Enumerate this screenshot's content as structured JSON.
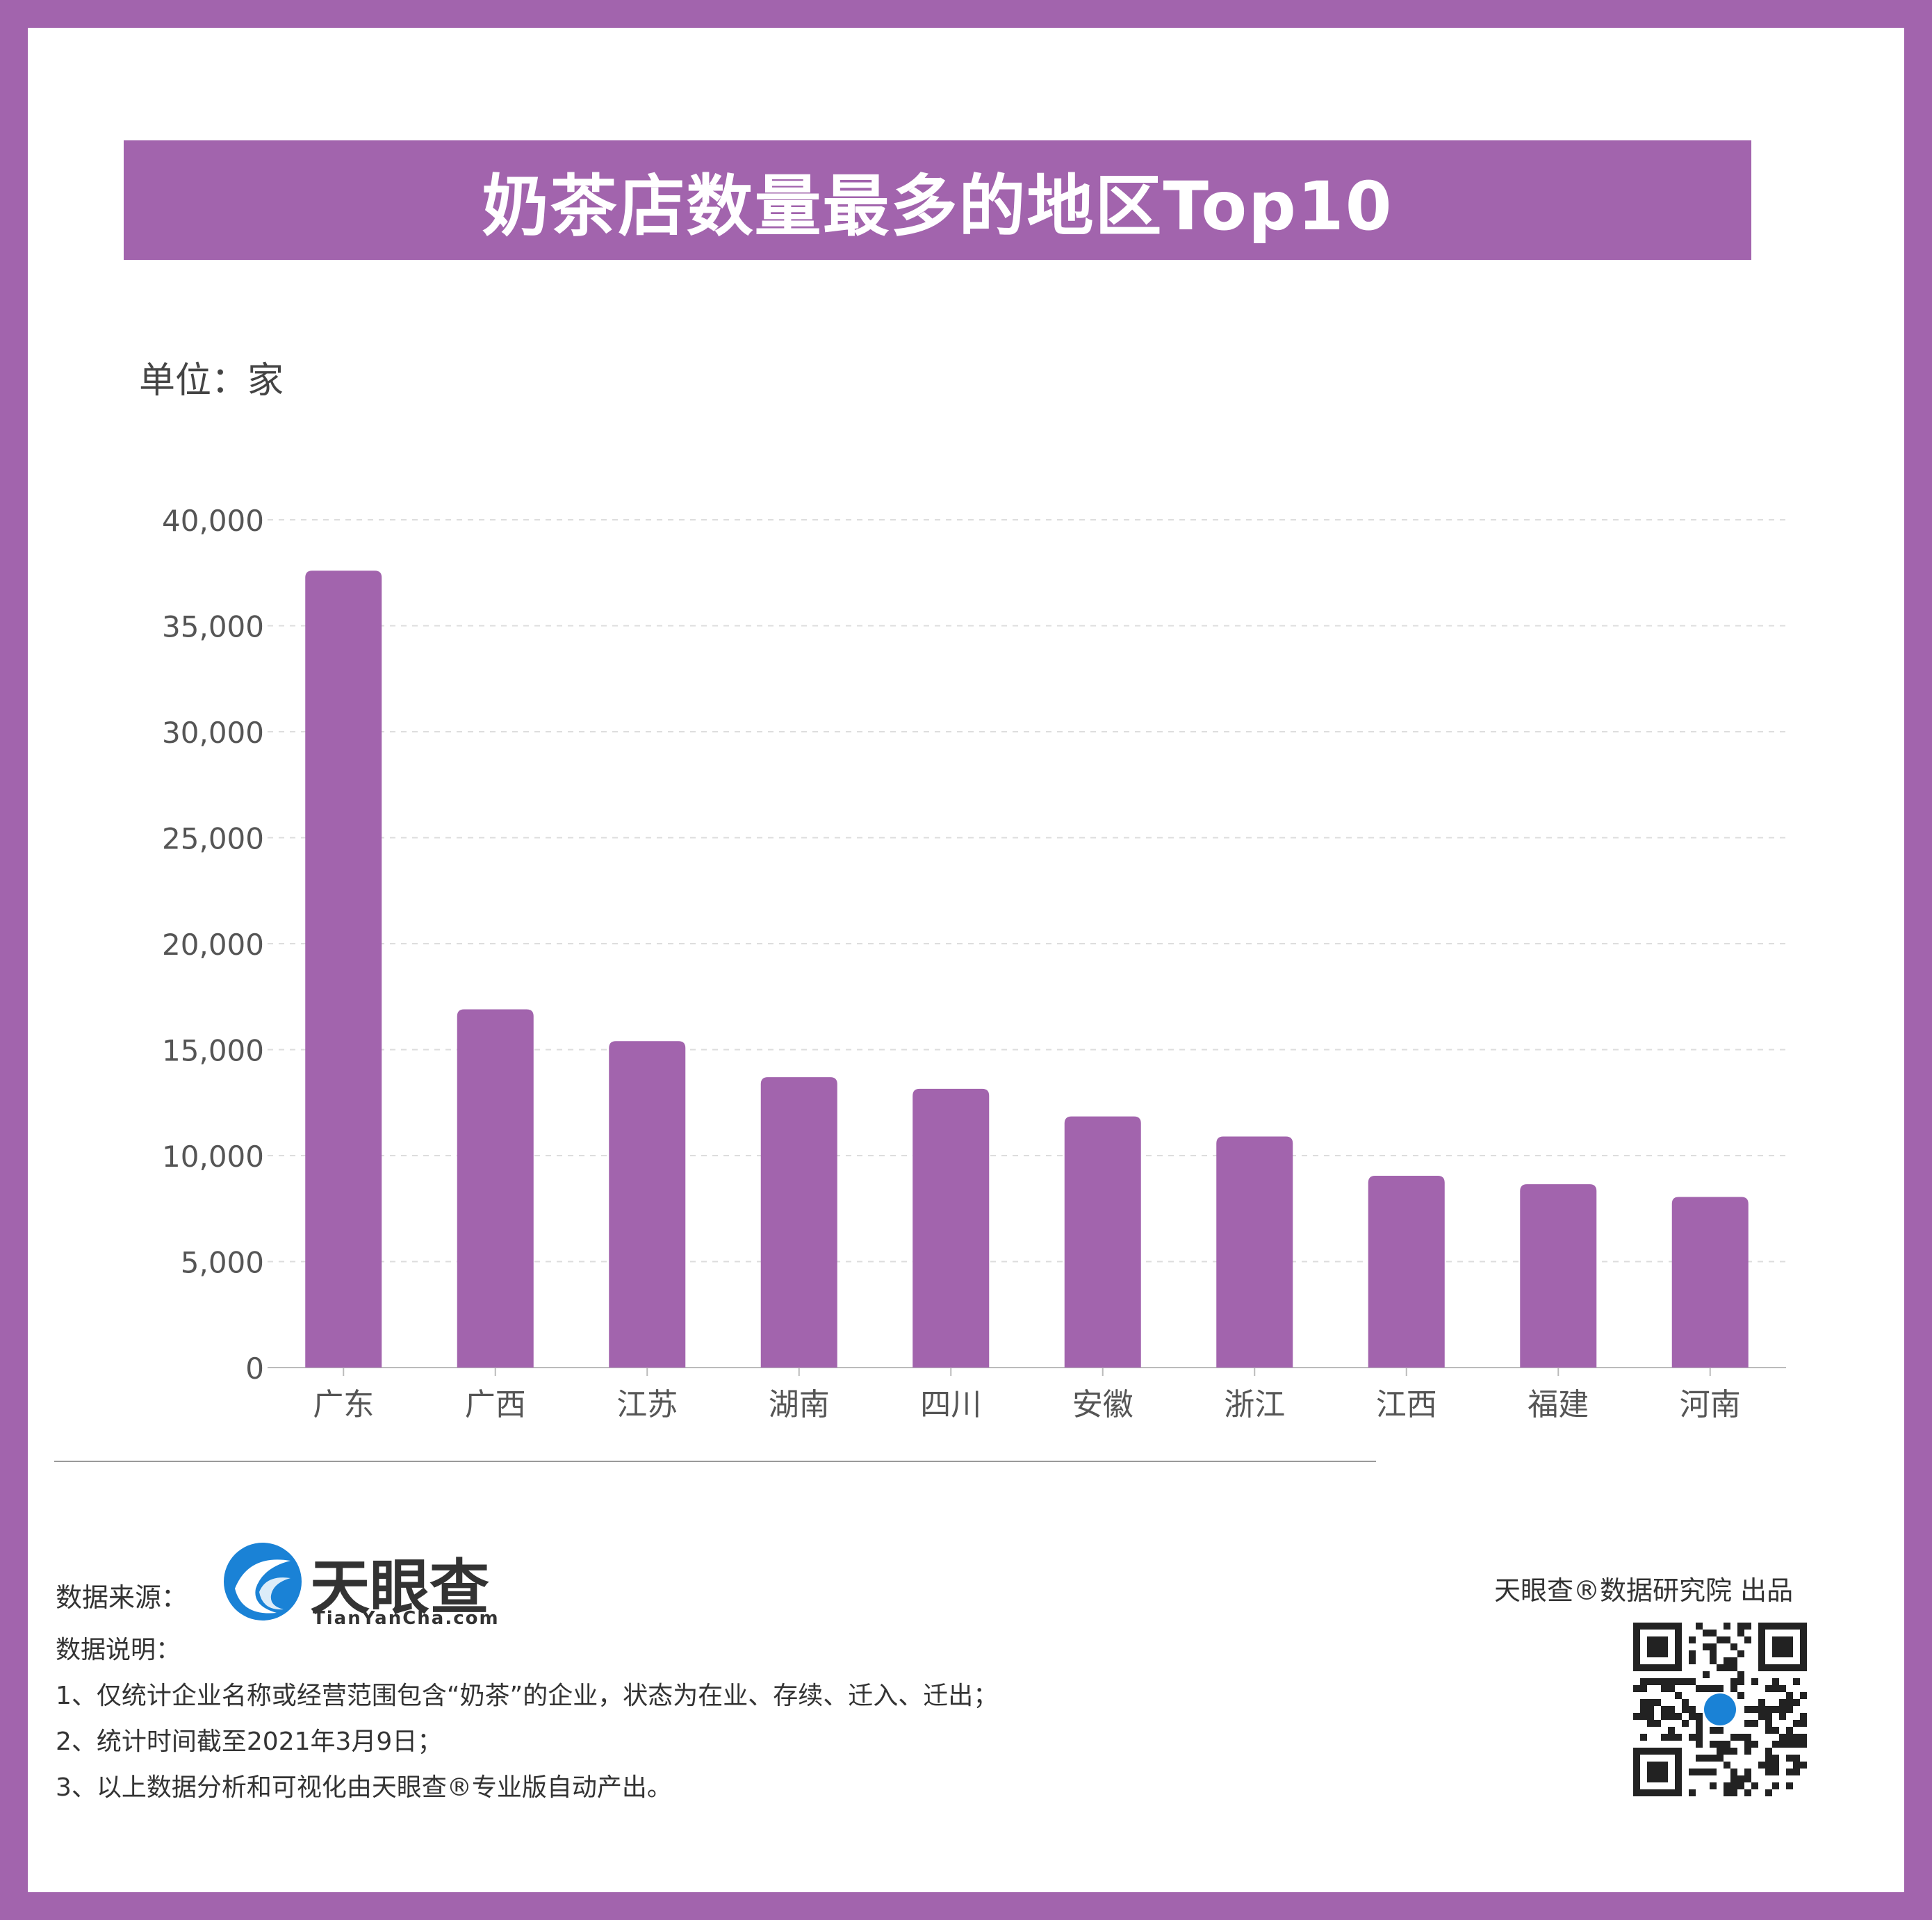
{
  "title": "奶茶店数量最多的地区Top10",
  "unit_label": "单位：家",
  "chart_data": {
    "type": "bar",
    "categories": [
      "广东",
      "广西",
      "江苏",
      "湖南",
      "四川",
      "安徽",
      "浙江",
      "江西",
      "福建",
      "河南"
    ],
    "values": [
      37600,
      16900,
      15400,
      13700,
      13150,
      11850,
      10900,
      9050,
      8650,
      8050
    ],
    "ylim": [
      0,
      40000
    ],
    "yticks": [
      "0",
      "5,000",
      "10,000",
      "15,000",
      "20,000",
      "25,000",
      "30,000",
      "35,000",
      "40,000"
    ],
    "grid": true,
    "bar_color": "#a264ad"
  },
  "footer": {
    "source_label": "数据来源：",
    "logo_name": "天眼查",
    "logo_url": "TianYanCha.com",
    "notes_title": "数据说明：",
    "notes": [
      "1、仅统计企业名称或经营范围包含“奶茶”的企业，状态为在业、存续、迁入、迁出；",
      "2、统计时间截至2021年3月9日；",
      "3、以上数据分析和可视化由天眼查®专业版自动产出。"
    ],
    "producer": "天眼查®数据研究院 出品"
  },
  "colors": {
    "accent": "#a264ad",
    "logo_blue": "#1a82d6"
  },
  "icons": [
    "tianyancha-logo-icon",
    "qr-code-icon"
  ]
}
